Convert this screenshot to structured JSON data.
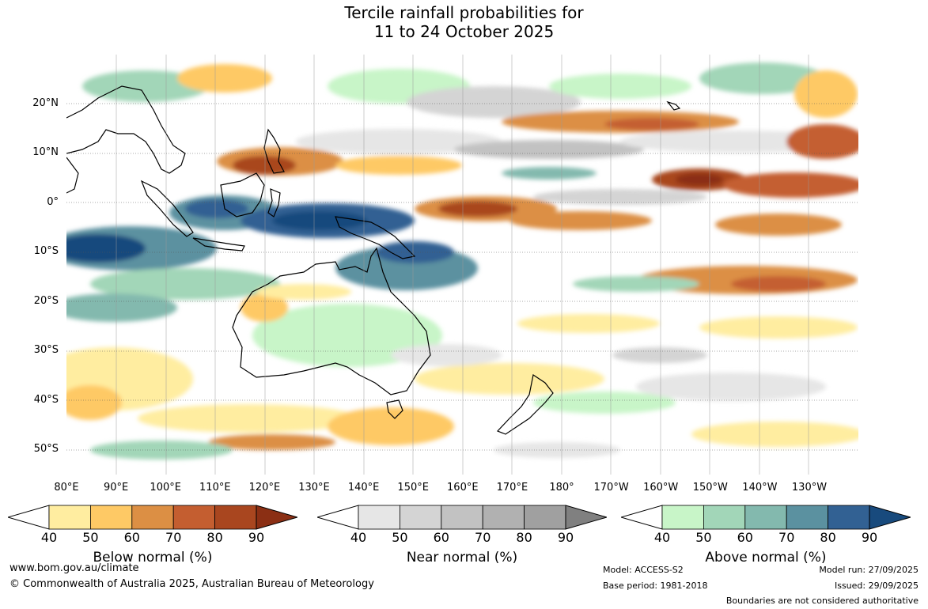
{
  "title": {
    "line1": "Tercile rainfall probabilities for",
    "line2": "11 to 24 October 2025"
  },
  "axes": {
    "lat_labels": [
      "20°N",
      "10°N",
      "0°",
      "10°S",
      "20°S",
      "30°S",
      "40°S",
      "50°S"
    ],
    "lon_labels": [
      "80°E",
      "90°E",
      "100°E",
      "110°E",
      "120°E",
      "130°E",
      "140°E",
      "150°E",
      "160°E",
      "170°E",
      "180°",
      "170°W",
      "160°W",
      "150°W",
      "140°W",
      "130°W"
    ]
  },
  "colorbars": [
    {
      "label": "Below normal (%)",
      "ticks": [
        "40",
        "50",
        "60",
        "70",
        "80",
        "90"
      ],
      "colors": [
        "#ffeda0",
        "#fec965",
        "#dc8f44",
        "#c45e30",
        "#a9461f",
        "#8b2f14"
      ]
    },
    {
      "label": "Near normal (%)",
      "ticks": [
        "40",
        "50",
        "60",
        "70",
        "80",
        "90"
      ],
      "colors": [
        "#e6e6e6",
        "#d4d4d4",
        "#c2c2c2",
        "#b1b1b1",
        "#a0a0a0",
        "#808080"
      ]
    },
    {
      "label": "Above normal (%)",
      "ticks": [
        "40",
        "50",
        "60",
        "70",
        "80",
        "90"
      ],
      "colors": [
        "#c8f5c8",
        "#a2d6b8",
        "#83b9ae",
        "#5b91a0",
        "#326193",
        "#184a7d"
      ]
    }
  ],
  "footer": {
    "website": "www.bom.gov.au/climate",
    "copyright": "© Commonwealth of Australia 2025, Australian Bureau of Meteorology",
    "model": "Model: ACCESS-S2",
    "base_period": "Base period: 1981-2018",
    "model_run": "Model run: 27/09/2025",
    "issued": "Issued: 29/09/2025",
    "disclaimer": "Boundaries are not considered authoritative"
  }
}
